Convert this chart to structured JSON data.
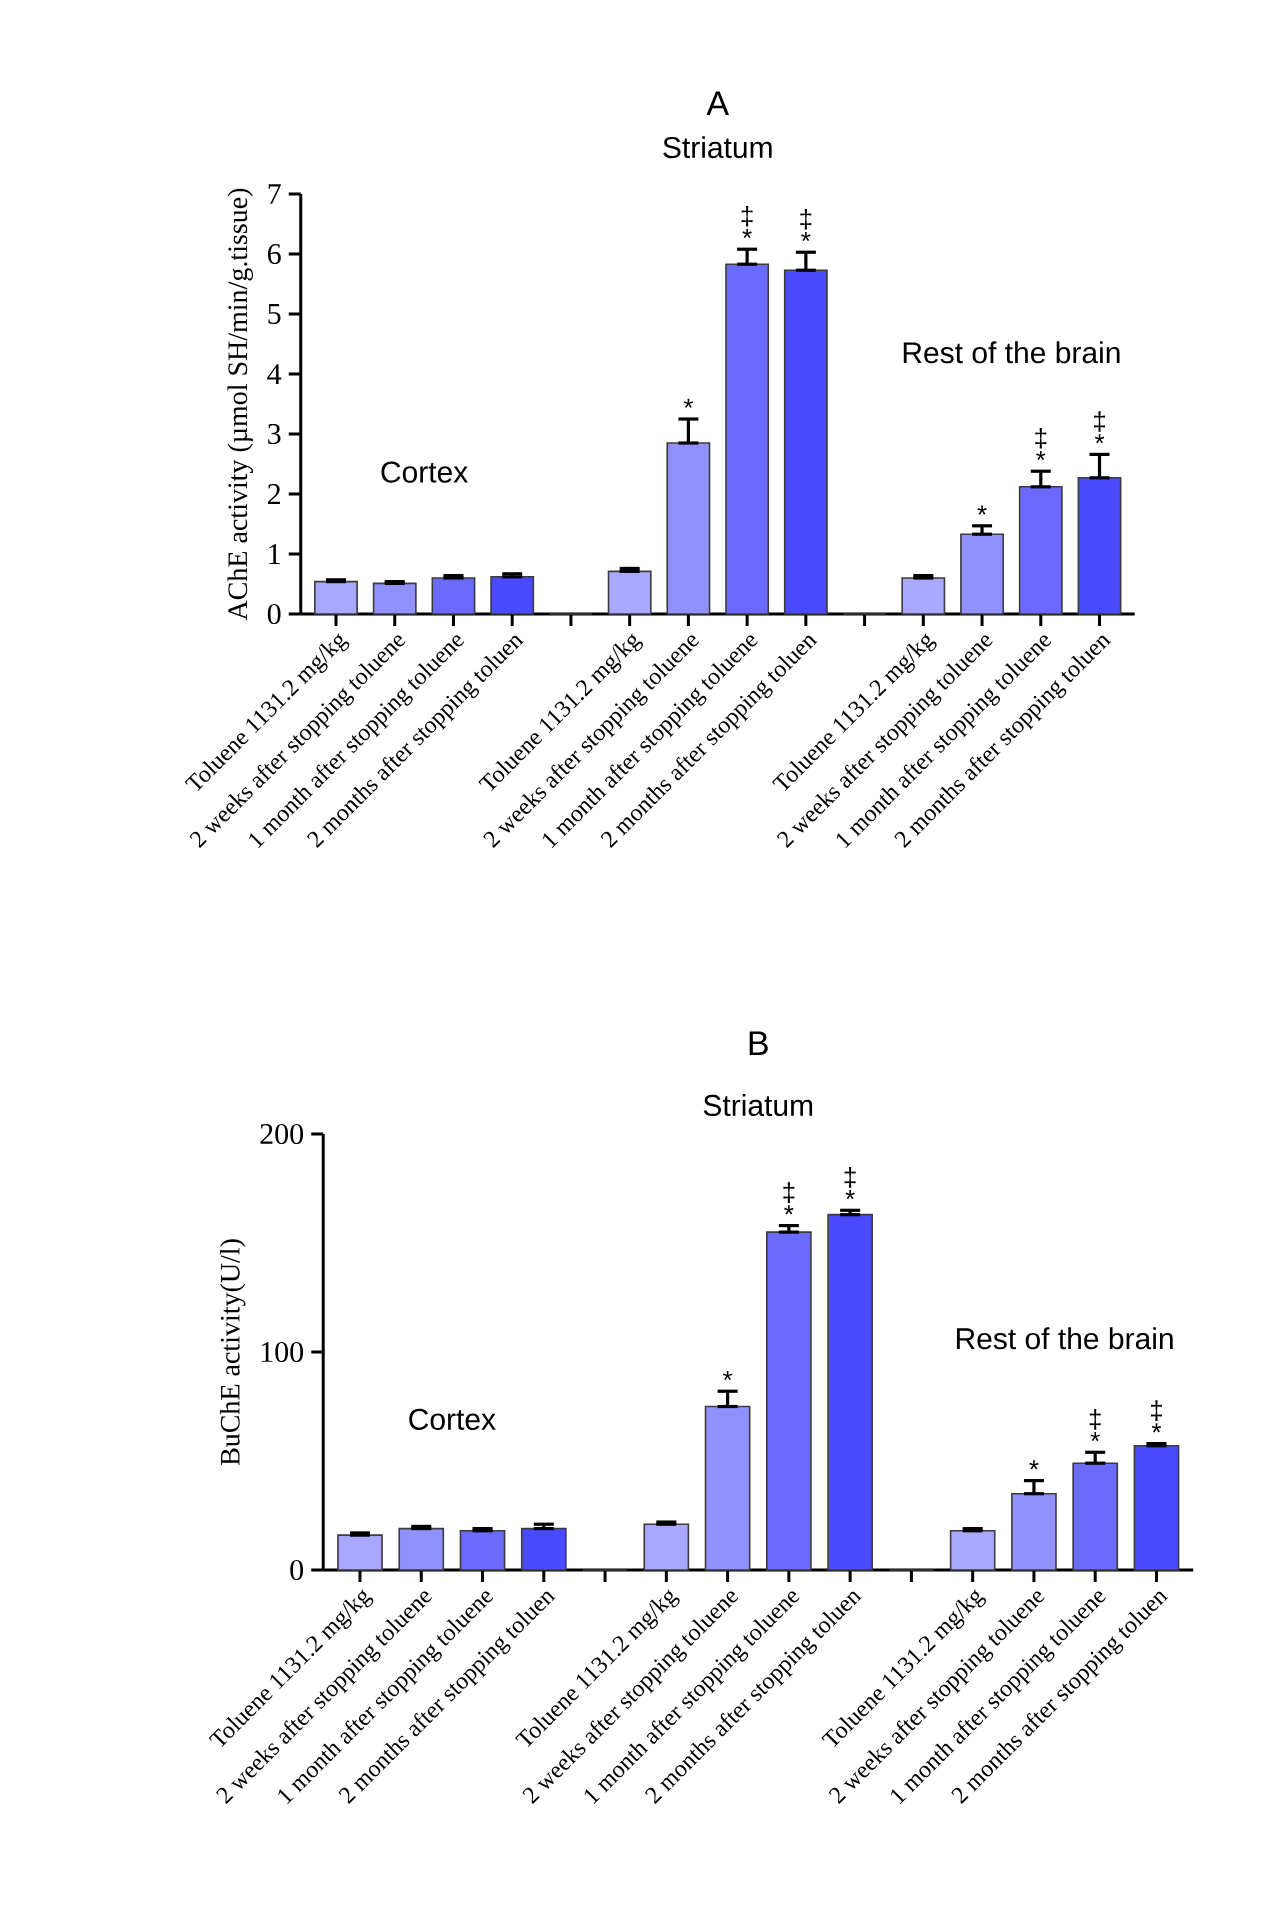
{
  "chart_data": [
    {
      "type": "bar",
      "title": "A",
      "ylabel": "AChE activity (µmol SH/min/g.tissue)",
      "categories": [
        "Toluene 1131.2 mg/kg",
        "2 weeks after stopping toluene",
        "1 month after stopping toluene",
        "2 months after stopping toluen",
        null,
        "Toluene 1131.2 mg/kg",
        "2 weeks after stopping toluene",
        "1 month after stopping toluene",
        "2 months after stopping toluen",
        null,
        "Toluene 1131.2 mg/kg",
        "2 weeks after stopping toluene",
        "1 month after stopping toluene",
        "2 months after stopping toluen"
      ],
      "values": [
        0.54,
        0.51,
        0.6,
        0.62,
        0,
        0.71,
        2.85,
        5.83,
        5.73,
        0,
        0.6,
        1.33,
        2.12,
        2.27
      ],
      "errors": [
        [
          0.54,
          0.57
        ],
        [
          0.51,
          0.54
        ],
        [
          0.6,
          0.64
        ],
        [
          0.62,
          0.67
        ],
        null,
        [
          0.71,
          0.76
        ],
        [
          2.85,
          3.25
        ],
        [
          5.83,
          6.08
        ],
        [
          5.73,
          6.03
        ],
        null,
        [
          0.6,
          0.64
        ],
        [
          1.33,
          1.47
        ],
        [
          2.12,
          2.38
        ],
        [
          2.27,
          2.66
        ]
      ],
      "value_labels": [
        null,
        null,
        null,
        null,
        null,
        null,
        "*",
        "‡ *",
        "‡ *",
        null,
        null,
        "*",
        "‡ *",
        "‡ *"
      ],
      "colors": [
        "#a8a8ff",
        "#9090ff",
        "#6a6aff",
        "#4a4aff",
        "#a8a8ff",
        "#a8a8ff",
        "#9090ff",
        "#6a6aff",
        "#4a4aff",
        "#a8a8ff",
        "#a8a8ff",
        "#9090ff",
        "#6a6aff",
        "#4a4aff"
      ],
      "annotations": [
        "Cortex",
        "Striatum",
        "Rest of the brain"
      ],
      "ylim": [
        0,
        7
      ],
      "yticks": [
        0,
        1,
        2,
        3,
        4,
        5,
        6,
        7
      ]
    },
    {
      "type": "bar",
      "title": "B",
      "ylabel": "BuChE activity(U/l)",
      "categories": [
        "Toluene 1131.2 mg/kg",
        "2 weeks after stopping toluene",
        "1 month after stopping toluene",
        "2 months after stopping toluen",
        null,
        "Toluene 1131.2 mg/kg",
        "2 weeks after stopping toluene",
        "1 month after stopping toluene",
        "2 months after stopping toluen",
        null,
        "Toluene 1131.2 mg/kg",
        "2 weeks after stopping toluene",
        "1 month after stopping toluene",
        "2 months after stopping toluen"
      ],
      "values": [
        16,
        19,
        18,
        19,
        0,
        21,
        75,
        155,
        163,
        0,
        18,
        35,
        49,
        57
      ],
      "errors": [
        [
          16,
          17
        ],
        [
          19,
          20
        ],
        [
          18,
          19
        ],
        [
          19,
          21
        ],
        null,
        [
          21,
          22
        ],
        [
          75,
          82
        ],
        [
          155,
          158
        ],
        [
          163,
          165
        ],
        null,
        [
          18,
          19
        ],
        [
          35,
          41
        ],
        [
          49,
          54
        ],
        [
          57,
          58
        ]
      ],
      "value_labels": [
        null,
        null,
        null,
        null,
        null,
        null,
        "*",
        "‡ *",
        "‡ *",
        null,
        null,
        "*",
        "‡ *",
        "‡ *"
      ],
      "colors": [
        "#a8a8ff",
        "#9090ff",
        "#6a6aff",
        "#4a4aff",
        "#a8a8ff",
        "#a8a8ff",
        "#9090ff",
        "#6a6aff",
        "#4a4aff",
        "#a8a8ff",
        "#a8a8ff",
        "#9090ff",
        "#6a6aff",
        "#4a4aff"
      ],
      "annotations": [
        "Cortex",
        "Striatum",
        "Rest of the brain"
      ],
      "ylim": [
        0,
        200
      ],
      "yticks": [
        0,
        100,
        200
      ]
    }
  ]
}
